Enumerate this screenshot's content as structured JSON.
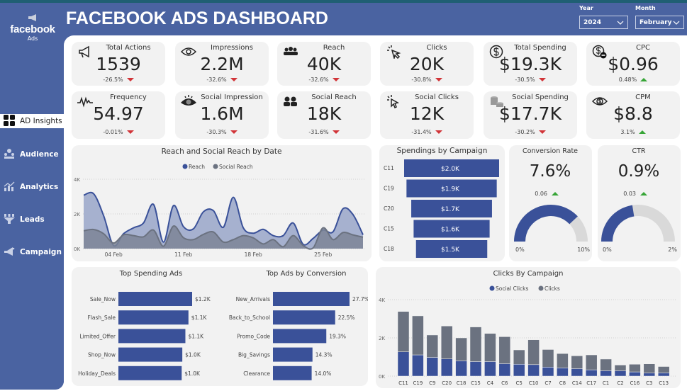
{
  "header": {
    "title": "FACEBOOK ADS DASHBOARD",
    "logo_text": "facebook",
    "logo_sub": "Ads",
    "filters": [
      {
        "label": "Year",
        "value": "2024"
      },
      {
        "label": "Month",
        "value": "February"
      }
    ]
  },
  "sidebar": {
    "items": [
      {
        "label": "AD Insights",
        "icon": "grid-icon",
        "active": true
      },
      {
        "label": "Audience",
        "icon": "audience-icon"
      },
      {
        "label": "Analytics",
        "icon": "analytics-icon"
      },
      {
        "label": "Leads",
        "icon": "funnel-icon"
      },
      {
        "label": "Campaign",
        "icon": "megaphone-icon"
      }
    ]
  },
  "colors": {
    "primary": "#4a63a1",
    "bar": "#3a5199",
    "secondary": "#6b7280",
    "down": "#d13438",
    "up": "#37a537",
    "card": "#f2f2f2"
  },
  "kpis": [
    {
      "label": "Total Actions",
      "value": "1539",
      "change": "-26.5%",
      "dir": "down",
      "icon": "megaphone-icon"
    },
    {
      "label": "Impressions",
      "value": "2.2M",
      "change": "-32.6%",
      "dir": "down",
      "icon": "eye-icon"
    },
    {
      "label": "Reach",
      "value": "40K",
      "change": "-32.6%",
      "dir": "down",
      "icon": "group-icon"
    },
    {
      "label": "Clicks",
      "value": "20K",
      "change": "-30.8%",
      "dir": "down",
      "icon": "cursor-click-icon"
    },
    {
      "label": "Total Spending",
      "value": "$19.3K",
      "change": "-30.5%",
      "dir": "down",
      "icon": "dollar-circle-icon"
    },
    {
      "label": "CPC",
      "value": "$0.96",
      "change": "0.48%",
      "dir": "up",
      "icon": "dollar-minus-icon"
    },
    {
      "label": "Frequency",
      "value": "54.97",
      "change": "-0.01%",
      "dir": "down",
      "icon": "pulse-icon"
    },
    {
      "label": "Social Impression",
      "value": "1.6M",
      "change": "-30.3%",
      "dir": "down",
      "icon": "eye-filled-icon"
    },
    {
      "label": "Social Reach",
      "value": "18K",
      "change": "-31.6%",
      "dir": "down",
      "icon": "people-icon"
    },
    {
      "label": "Social Clicks",
      "value": "12K",
      "change": "-31.4%",
      "dir": "down",
      "icon": "pointer-click-icon"
    },
    {
      "label": "Social Spending",
      "value": "$17.7K",
      "change": "-30.2%",
      "dir": "down",
      "icon": "coins-icon"
    },
    {
      "label": "CPM",
      "value": "$8.8",
      "change": "3.1%",
      "dir": "up",
      "icon": "eye-dollar-icon"
    }
  ],
  "chart_data": [
    {
      "type": "area",
      "title": "Reach and Social Reach by Date",
      "x_ticks": [
        "04 Feb",
        "11 Feb",
        "18 Feb",
        "25 Feb"
      ],
      "y_ticks": [
        "0K",
        "2K",
        "4K"
      ],
      "ylim": [
        0,
        4000
      ],
      "legend_position": "top-center",
      "grid": true,
      "x": [
        1,
        2,
        3,
        4,
        5,
        6,
        7,
        8,
        9,
        10,
        11,
        12,
        13,
        14,
        15,
        16,
        17,
        18,
        19,
        20,
        21,
        22,
        23,
        24,
        25,
        26,
        27,
        28,
        29
      ],
      "series": [
        {
          "name": "Reach",
          "color": "#3a5199",
          "values": [
            3080,
            3160,
            1900,
            180,
            860,
            1200,
            1480,
            2550,
            380,
            2480,
            1270,
            1140,
            2120,
            2190,
            1230,
            2960,
            1200,
            890,
            1110,
            750,
            750,
            1480,
            250,
            590,
            1070,
            970,
            2300,
            1960,
            800
          ]
        },
        {
          "name": "Social Reach",
          "color": "#6b7280",
          "values": [
            1030,
            1100,
            860,
            320,
            800,
            750,
            680,
            1070,
            140,
            1300,
            630,
            520,
            820,
            960,
            380,
            520,
            750,
            620,
            270,
            520,
            110,
            750,
            180,
            40,
            1200,
            520,
            930,
            790,
            660
          ]
        }
      ]
    },
    {
      "type": "bar",
      "orientation": "funnel",
      "title": "Spendings by Campaign",
      "categories": [
        "C11",
        "C19",
        "C20",
        "C15",
        "C18"
      ],
      "values": [
        2000,
        1900,
        1700,
        1600,
        1500
      ],
      "labels": [
        "$2.0K",
        "$1.9K",
        "$1.7K",
        "$1.6K",
        "$1.5K"
      ]
    },
    {
      "type": "gauge",
      "title": "Conversion Rate",
      "value": 7.6,
      "display": "7.6%",
      "target_change": "0.06",
      "dir": "up",
      "min_label": "0%",
      "max_label": "10%",
      "max": 10
    },
    {
      "type": "gauge",
      "title": "CTR",
      "value": 0.9,
      "display": "0.9%",
      "target_change": "0.03",
      "dir": "up",
      "min_label": "0%",
      "max_label": "2%",
      "max": 2
    },
    {
      "type": "bar",
      "orientation": "horizontal",
      "title": "Top Spending Ads",
      "categories": [
        "Sale_Now",
        "Flash_Sale",
        "Limited_Offer",
        "Shop_Now",
        "Holiday_Deals"
      ],
      "values": [
        1200,
        1140,
        1090,
        1040,
        1030
      ],
      "labels": [
        "$1.2K",
        "$1.1K",
        "$1.1K",
        "$1.0K",
        "$1.0K"
      ]
    },
    {
      "type": "bar",
      "orientation": "horizontal",
      "title": "Top Ads by Conversion",
      "categories": [
        "New_Arrivals",
        "Back_to_School",
        "Promo_Code",
        "Big_Savings",
        "Clearance"
      ],
      "values": [
        27.7,
        22.5,
        19.3,
        14.3,
        14.0
      ],
      "labels": [
        "27.7%",
        "22.5%",
        "19.3%",
        "14.3%",
        "14.0%"
      ]
    },
    {
      "type": "bar",
      "orientation": "stacked",
      "title": "Clicks By Campaign",
      "legend_position": "top-center",
      "y_ticks": [
        "0K",
        "2K",
        "4K"
      ],
      "ylim": [
        0,
        4000
      ],
      "grid": true,
      "categories": [
        "C11",
        "C19",
        "C9",
        "C20",
        "C18",
        "C15",
        "C4",
        "C6",
        "C5",
        "C10",
        "C7",
        "C8",
        "C14",
        "C17",
        "C1",
        "C2",
        "C16",
        "C3",
        "C13"
      ],
      "series": [
        {
          "name": "Social Clicks",
          "color": "#3a5199",
          "values": [
            1270,
            1110,
            980,
            900,
            800,
            760,
            760,
            650,
            620,
            600,
            470,
            430,
            390,
            330,
            280,
            280,
            220,
            160,
            170
          ]
        },
        {
          "name": "Clicks",
          "color": "#6b7280",
          "values": [
            2110,
            2040,
            1170,
            1720,
            1200,
            1810,
            1470,
            1410,
            750,
            1300,
            920,
            750,
            670,
            780,
            610,
            300,
            400,
            480,
            330
          ]
        }
      ]
    }
  ]
}
